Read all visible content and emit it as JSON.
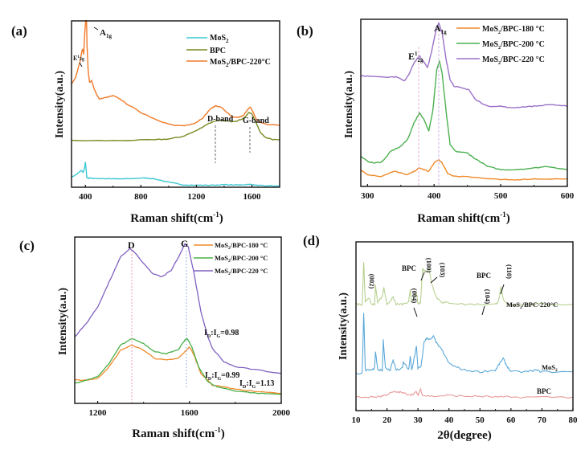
{
  "chart_data": [
    {
      "panel": "(a)",
      "type": "line",
      "xlabel": "Raman shift(cm-1)",
      "ylabel": "Intensity(a.u.)",
      "xlim": [
        300,
        1800
      ],
      "ylim": [
        0,
        100
      ],
      "xticks": [
        400,
        800,
        1200,
        1600
      ],
      "legend_position": "top-right",
      "grid": false,
      "series": [
        {
          "name": "MoS2",
          "color": "#3cc8d2",
          "x": [
            300,
            340,
            370,
            385,
            395,
            400,
            405,
            410,
            420,
            440,
            500,
            600,
            700,
            800,
            850,
            900,
            1000,
            1100,
            1200,
            1300,
            1400,
            1500,
            1580,
            1600,
            1650,
            1700,
            1800
          ],
          "y": [
            6,
            8,
            10,
            9,
            12,
            15,
            11,
            6,
            5.5,
            5.5,
            5.2,
            5,
            5,
            5.5,
            5.5,
            5,
            3,
            1.5,
            1.2,
            1.2,
            1.5,
            1.3,
            1.8,
            1.5,
            1,
            0.8,
            0.8
          ]
        },
        {
          "name": "BPC",
          "color": "#7a8a20",
          "x": [
            300,
            600,
            900,
            1000,
            1100,
            1200,
            1280,
            1340,
            1400,
            1450,
            1500,
            1550,
            1580,
            1600,
            1630,
            1660,
            1700,
            1750,
            1800
          ],
          "y": [
            28,
            28,
            28.5,
            29,
            30.5,
            34,
            38,
            40,
            40,
            39.5,
            40,
            42,
            45,
            44,
            39,
            33,
            30,
            28.5,
            28.5
          ]
        },
        {
          "name": "MoS2/BPC-220°C",
          "color": "#f07a2a",
          "x": [
            300,
            330,
            360,
            375,
            382,
            388,
            395,
            402,
            408,
            412,
            420,
            430,
            445,
            460,
            480,
            500,
            550,
            600,
            650,
            700,
            800,
            900,
            1000,
            1050,
            1100,
            1150,
            1200,
            1250,
            1300,
            1340,
            1380,
            1420,
            1460,
            1500,
            1540,
            1570,
            1590,
            1610,
            1630,
            1660,
            1700,
            1750,
            1800
          ],
          "y": [
            62,
            66,
            75,
            82,
            83,
            80,
            92,
            100,
            100,
            85,
            70,
            63,
            64,
            60,
            56,
            53,
            54,
            55,
            53,
            50,
            45,
            41,
            38,
            37,
            37,
            37.5,
            39,
            42,
            47,
            49,
            48,
            45,
            42,
            42,
            43,
            47,
            48,
            45,
            41,
            39,
            38,
            37.5,
            37.5
          ]
        }
      ],
      "annotations": [
        {
          "text": "A1g",
          "x": 410
        },
        {
          "text": "E12g",
          "x": 380
        },
        {
          "text": "D-band",
          "x": 1340
        },
        {
          "text": "G-band",
          "x": 1585
        }
      ]
    },
    {
      "panel": "(b)",
      "type": "line",
      "xlabel": "Raman shift(cm-1)",
      "ylabel": "Intensity(a.u.)",
      "xlim": [
        290,
        600
      ],
      "ylim": [
        0,
        100
      ],
      "xticks": [
        300,
        400,
        500,
        600
      ],
      "legend_position": "top-right",
      "grid": false,
      "series": [
        {
          "name": "MoS2/BPC-180 °C",
          "color": "#f08a2a",
          "x": [
            290,
            300,
            320,
            340,
            360,
            370,
            378,
            385,
            392,
            400,
            407,
            412,
            420,
            430,
            450,
            470,
            500,
            520,
            550,
            600
          ],
          "y": [
            10,
            7,
            6,
            9,
            7,
            9,
            11,
            10,
            9,
            14,
            16,
            14,
            8,
            6,
            6,
            5,
            4,
            4,
            4.5,
            4.5
          ]
        },
        {
          "name": "MoS2/BPC-200 °C",
          "color": "#4cb050",
          "x": [
            290,
            300,
            310,
            320,
            325,
            335,
            350,
            360,
            370,
            378,
            385,
            392,
            398,
            404,
            408,
            412,
            418,
            424,
            432,
            450,
            460,
            480,
            500,
            520,
            550,
            570,
            600
          ],
          "y": [
            18,
            15,
            14,
            14.5,
            16,
            21,
            24,
            28,
            38,
            44,
            40,
            33,
            45,
            70,
            75,
            68,
            45,
            25,
            21,
            20,
            17,
            12,
            10,
            10,
            11,
            12,
            10
          ]
        },
        {
          "name": "MoS2/BPC-220 °C",
          "color": "#9a70c8",
          "x": [
            290,
            300,
            330,
            345,
            355,
            362,
            370,
            378,
            384,
            390,
            396,
            402,
            407,
            412,
            418,
            424,
            430,
            440,
            452,
            462,
            480,
            500,
            515,
            530,
            550,
            575,
            600
          ],
          "y": [
            66,
            66,
            65.5,
            65.5,
            63,
            67,
            74,
            78,
            75,
            71,
            80,
            92,
            98,
            92,
            76,
            64,
            60,
            59,
            58,
            52,
            48,
            48,
            47,
            47.5,
            48,
            49,
            48
          ]
        }
      ],
      "annotations": [
        {
          "text": "E12g",
          "x": 378
        },
        {
          "text": "A1g",
          "x": 407
        }
      ]
    },
    {
      "panel": "(c)",
      "type": "line",
      "xlabel": "Raman shift(cm-1)",
      "ylabel": "Intensity(a.u.)",
      "xlim": [
        1100,
        2000
      ],
      "ylim": [
        0,
        100
      ],
      "xticks": [
        1200,
        1600,
        2000
      ],
      "legend_position": "top-right",
      "grid": false,
      "series": [
        {
          "name": "MoS2/BPC-180 °C",
          "color": "#f08a2a",
          "x": [
            1100,
            1150,
            1200,
            1250,
            1300,
            1350,
            1400,
            1450,
            1500,
            1550,
            1580,
            1600,
            1620,
            1650,
            1700,
            1750,
            1800,
            1900,
            2000
          ],
          "y": [
            14,
            14,
            15,
            22,
            32,
            35,
            32,
            27,
            26,
            27,
            31,
            34,
            29,
            18,
            11,
            10,
            8.5,
            7,
            6
          ]
        },
        {
          "name": "MoS2/BPC-200 °C",
          "color": "#48b048",
          "x": [
            1100,
            1150,
            1200,
            1250,
            1300,
            1350,
            1400,
            1450,
            1500,
            1550,
            1580,
            1590,
            1610,
            1640,
            1680,
            1720,
            1800,
            1900,
            2000
          ],
          "y": [
            12,
            14,
            16,
            24,
            35,
            39,
            36,
            31,
            30,
            32,
            38,
            39,
            34,
            22,
            13,
            10,
            7.5,
            6,
            5.5
          ]
        },
        {
          "name": "MoS2/BPC-220 °C",
          "color": "#8060c0",
          "x": [
            1100,
            1150,
            1200,
            1250,
            1300,
            1340,
            1360,
            1400,
            1440,
            1480,
            1520,
            1560,
            1580,
            1595,
            1620,
            1650,
            1680,
            1700,
            1750,
            1800,
            1900,
            2000
          ],
          "y": [
            40,
            48,
            58,
            73,
            88,
            93,
            91,
            84,
            78,
            76,
            80,
            90,
            96,
            94,
            78,
            55,
            40,
            33,
            25,
            22,
            20,
            18
          ]
        }
      ],
      "annotations": [
        {
          "text": "D",
          "x": 1350
        },
        {
          "text": "G",
          "x": 1590
        },
        {
          "text": "ID:IG=0.98"
        },
        {
          "text": "ID:IG=0.99"
        },
        {
          "text": "ID:IG=1.13"
        }
      ]
    },
    {
      "panel": "(d)",
      "type": "line",
      "xlabel": "2θ(degree)",
      "ylabel": "Intensity(a.u.)",
      "xlim": [
        10,
        80
      ],
      "ylim": [
        0,
        100
      ],
      "xticks": [
        10,
        20,
        30,
        40,
        50,
        60,
        70,
        80
      ],
      "legend_position": "right",
      "grid": false,
      "series": [
        {
          "name": "MoS2/BPC-220°C",
          "color": "#b8d090",
          "x": [
            10,
            12,
            12.5,
            13,
            14,
            15,
            16,
            16.3,
            17,
            18.5,
            19,
            20,
            22,
            23,
            25,
            27,
            27.5,
            28,
            29.5,
            30,
            30.8,
            31.5,
            32.5,
            33.5,
            34.5,
            36,
            38,
            40,
            45,
            50,
            55,
            56,
            56.8,
            57.5,
            59,
            65,
            70,
            80
          ],
          "y": [
            63,
            63,
            88,
            64,
            67,
            63,
            63,
            74,
            64,
            68,
            73,
            63,
            67,
            63,
            63,
            64,
            72,
            64,
            70,
            63,
            64,
            84,
            82,
            84,
            75,
            67,
            64,
            64,
            63,
            63,
            63,
            65,
            73,
            66,
            63,
            63,
            63,
            63
          ]
        },
        {
          "name": "MoS2",
          "color": "#5ba8d8",
          "x": [
            10,
            12,
            12.5,
            13,
            15,
            16,
            16.3,
            17,
            18.5,
            18.8,
            19.5,
            21,
            22,
            23,
            25,
            25.3,
            27,
            27.5,
            28,
            29.5,
            30,
            31,
            32,
            33,
            34,
            35,
            36,
            38,
            40,
            42,
            45,
            50,
            55,
            56,
            57.5,
            58.5,
            60,
            65,
            68,
            70,
            80
          ],
          "y": [
            22,
            22,
            58,
            24,
            24,
            25,
            35,
            24,
            24,
            42,
            25,
            24,
            30,
            24,
            25,
            29,
            24,
            32,
            24,
            38,
            25,
            26,
            41,
            43,
            42,
            44,
            40,
            35,
            28,
            26,
            24,
            23,
            24,
            27,
            31,
            27,
            23,
            23,
            24,
            23,
            23
          ]
        },
        {
          "name": "BPC",
          "color": "#e89a9a",
          "x": [
            10,
            15,
            18,
            20,
            22,
            24,
            26,
            28,
            29.5,
            30,
            30.8,
            31.5,
            35,
            40,
            45,
            50,
            55,
            60,
            70,
            80
          ],
          "y": [
            8,
            8,
            8.5,
            9.5,
            11,
            11,
            10,
            9.5,
            11,
            9,
            13,
            9,
            8.5,
            9,
            8.5,
            8.5,
            8,
            8,
            8,
            8
          ]
        }
      ],
      "annotations": [
        {
          "text": "(002)",
          "x": 14
        },
        {
          "text": "(004)",
          "x": 29
        },
        {
          "text": "BPC"
        },
        {
          "text": "(100)",
          "x": 32
        },
        {
          "text": "(103)",
          "x": 34
        },
        {
          "text": "BPC"
        },
        {
          "text": "(104)",
          "x": 51
        },
        {
          "text": "(110)",
          "x": 57
        }
      ]
    }
  ],
  "labels": {
    "a": "(a)",
    "b": "(b)",
    "c": "(c)",
    "d": "(d)",
    "y": "Intensity(a.u.)",
    "raman_x_main": "Raman shift(cm",
    "raman_x_sup": "-1",
    "raman_x_close": ")",
    "xrd_x": "2θ(degree)",
    "a_A1g": "A",
    "a_A1g_sub": "1g",
    "a_E2g": "E",
    "a_E2g_sup": "1",
    "a_E2g_sub": "2g",
    "a_D": "D-band",
    "a_G": "G-band",
    "b_E": "E",
    "b_E_sup": "1",
    "b_E_sub": "2g",
    "b_A": "A",
    "b_A_sub": "1g",
    "c_D": "D",
    "c_G": "G",
    "ratio_prefix_I": "I",
    "ratio_D": "D",
    "ratio_colon": ":I",
    "ratio_G": "G",
    "ratio_098": "=0.98",
    "ratio_099": "=0.99",
    "ratio_113": "=1.13",
    "d_002": "(002)",
    "d_004": "(004)",
    "d_100": "(100)",
    "d_103": "(103)",
    "d_104": "(104)",
    "d_110": "(110)",
    "d_bpc1": "BPC",
    "d_bpc2": "BPC",
    "d_lab_comp": "MoS",
    "d_lab_comp_sub": "2",
    "d_lab_comp_rest": "/BPC-220°C",
    "d_lab_mos": "MoS",
    "d_lab_mos_sub": "2",
    "d_lab_bpc": "BPC",
    "leg_mos": "MoS",
    "leg_sub2": "2",
    "leg_bpc": "BPC",
    "leg_comp_rest": "/BPC-220°C",
    "leg_180_rest": "/BPC-180 °C",
    "leg_200_rest": "/BPC-200 °C",
    "leg_220_rest": "/BPC-220 °C"
  }
}
